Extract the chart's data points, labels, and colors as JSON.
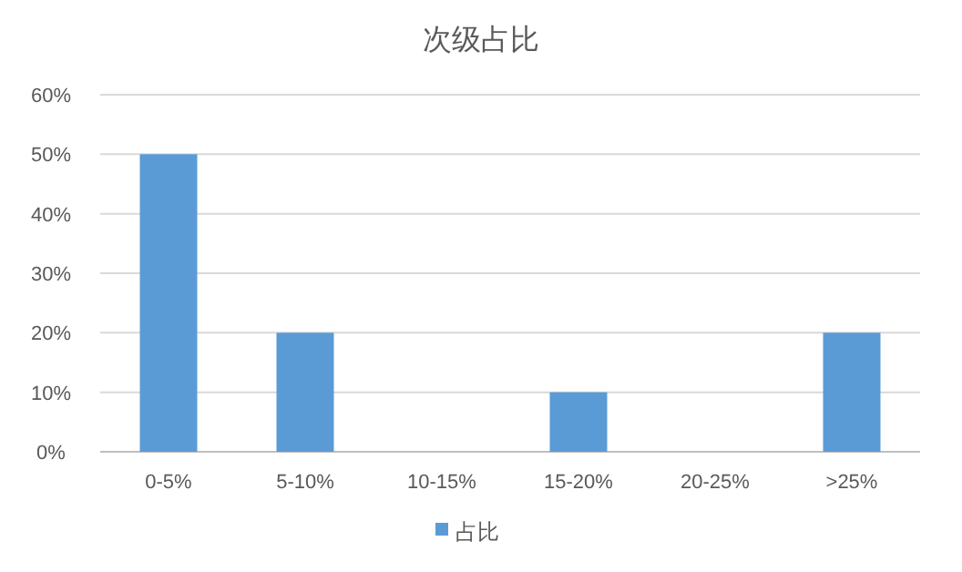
{
  "chart_data": {
    "type": "bar",
    "title": "次级占比",
    "categories": [
      "0-5%",
      "5-10%",
      "10-15%",
      "15-20%",
      "20-25%",
      ">25%"
    ],
    "series": [
      {
        "name": "占比",
        "color": "#5b9bd5",
        "values": [
          50,
          20,
          0,
          10,
          0,
          20
        ]
      }
    ],
    "ylim": [
      0,
      60
    ],
    "yticks": [
      {
        "value": 0,
        "label": "0%"
      },
      {
        "value": 10,
        "label": "10%"
      },
      {
        "value": 20,
        "label": "20%"
      },
      {
        "value": 30,
        "label": "30%"
      },
      {
        "value": 40,
        "label": "40%"
      },
      {
        "value": 50,
        "label": "50%"
      },
      {
        "value": 60,
        "label": "60%"
      }
    ],
    "grid": "y",
    "legend": "bottom"
  }
}
